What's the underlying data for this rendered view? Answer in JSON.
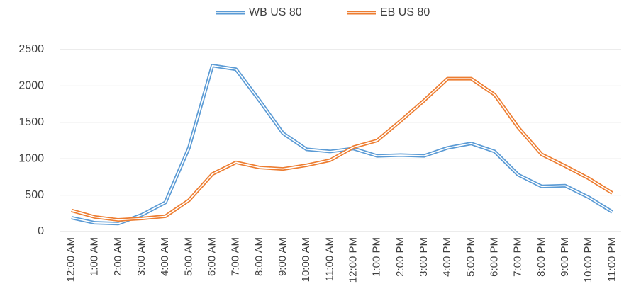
{
  "chart_data": {
    "type": "line",
    "categories": [
      "12:00 AM",
      "1:00 AM",
      "2:00 AM",
      "3:00 AM",
      "4:00 AM",
      "5:00 AM",
      "6:00 AM",
      "7:00 AM",
      "8:00 AM",
      "9:00 AM",
      "10:00 AM",
      "11:00 AM",
      "12:00 PM",
      "1:00 PM",
      "2:00 PM",
      "3:00 PM",
      "4:00 PM",
      "5:00 PM",
      "6:00 PM",
      "7:00 PM",
      "8:00 PM",
      "9:00 PM",
      "10:00 PM",
      "11:00 PM"
    ],
    "series": [
      {
        "name": "WB US 80",
        "color": "#5b9bd5",
        "values": [
          190,
          120,
          110,
          230,
          400,
          1150,
          2280,
          2230,
          1800,
          1350,
          1130,
          1100,
          1140,
          1040,
          1050,
          1040,
          1150,
          1210,
          1100,
          780,
          620,
          630,
          470,
          270
        ]
      },
      {
        "name": "EB US 80",
        "color": "#ed7d31",
        "values": [
          290,
          200,
          160,
          180,
          210,
          430,
          790,
          950,
          880,
          860,
          910,
          980,
          1160,
          1250,
          1520,
          1800,
          2100,
          2100,
          1880,
          1430,
          1060,
          900,
          730,
          530
        ]
      }
    ],
    "ylim": [
      0,
      2500
    ],
    "yticks": [
      0,
      500,
      1000,
      1500,
      2000,
      2500
    ],
    "grid": true,
    "legend": "top"
  }
}
